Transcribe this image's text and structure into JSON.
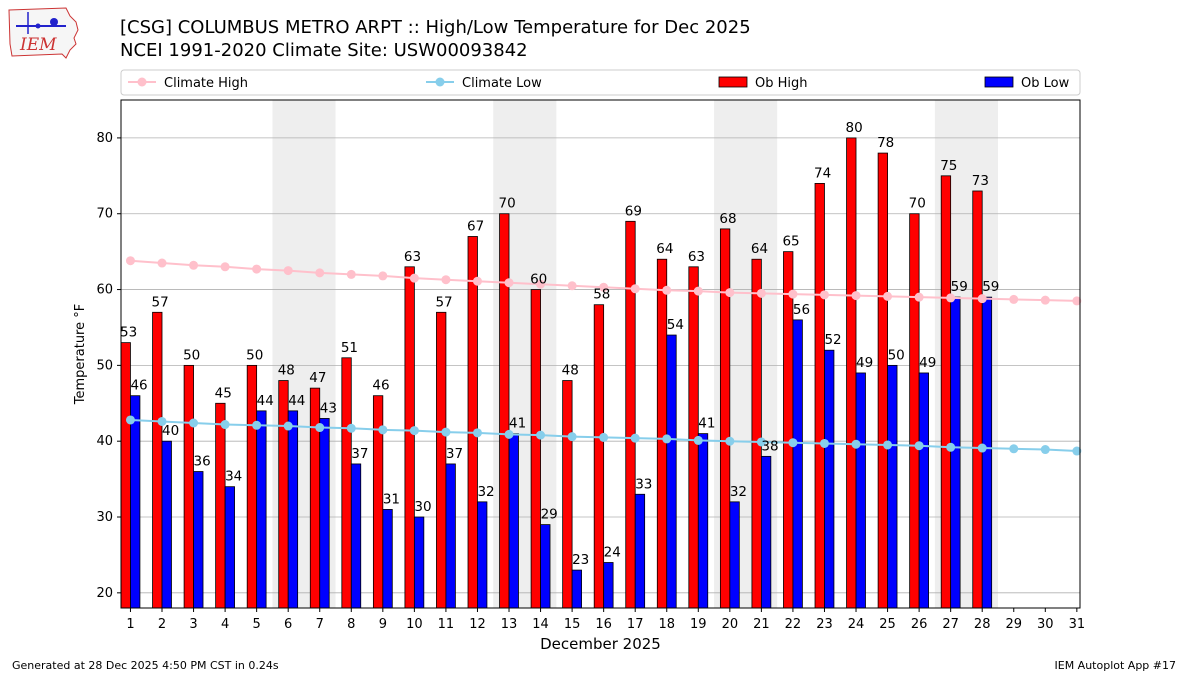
{
  "page": {
    "title_line1": "[CSG] COLUMBUS METRO ARPT :: High/Low Temperature for Dec 2025",
    "title_line2": "NCEI 1991-2020 Climate Site: USW00093842",
    "footer_left": "Generated at 28 Dec 2025 4:50 PM CST in 0.24s",
    "footer_right": "IEM Autoplot App #17",
    "logo_text": "IEM"
  },
  "chart_data": {
    "type": "bar",
    "title": "[CSG] COLUMBUS METRO ARPT :: High/Low Temperature for Dec 2025",
    "subtitle": "NCEI 1991-2020 Climate Site: USW00093842",
    "xlabel": "December 2025",
    "ylabel": "Temperature °F",
    "ylim": [
      18,
      85
    ],
    "yticks": [
      20,
      30,
      40,
      50,
      60,
      70,
      80
    ],
    "grid": "horizontal",
    "legend_position": "top",
    "weekend_shading_days": [
      [
        6,
        7
      ],
      [
        13,
        14
      ],
      [
        20,
        21
      ],
      [
        27,
        28
      ]
    ],
    "categories": [
      "1",
      "2",
      "3",
      "4",
      "5",
      "6",
      "7",
      "8",
      "9",
      "10",
      "11",
      "12",
      "13",
      "14",
      "15",
      "16",
      "17",
      "18",
      "19",
      "20",
      "21",
      "22",
      "23",
      "24",
      "25",
      "26",
      "27",
      "28",
      "29",
      "30",
      "31"
    ],
    "series": [
      {
        "name": "Climate High",
        "kind": "line",
        "color": "#ffc0cb",
        "values": [
          63.8,
          63.5,
          63.2,
          63.0,
          62.7,
          62.5,
          62.2,
          62.0,
          61.8,
          61.5,
          61.3,
          61.1,
          60.9,
          60.7,
          60.5,
          60.3,
          60.1,
          59.9,
          59.8,
          59.6,
          59.5,
          59.4,
          59.3,
          59.2,
          59.1,
          59.0,
          58.9,
          58.8,
          58.7,
          58.6,
          58.5
        ]
      },
      {
        "name": "Climate Low",
        "kind": "line",
        "color": "#87ceeb",
        "values": [
          42.8,
          42.6,
          42.4,
          42.2,
          42.1,
          42.0,
          41.8,
          41.7,
          41.5,
          41.4,
          41.2,
          41.1,
          40.9,
          40.8,
          40.6,
          40.5,
          40.4,
          40.3,
          40.1,
          40.0,
          39.9,
          39.8,
          39.7,
          39.6,
          39.5,
          39.4,
          39.2,
          39.1,
          39.0,
          38.9,
          38.7
        ]
      },
      {
        "name": "Ob High",
        "kind": "bar",
        "color": "#ff0000",
        "values": [
          53,
          57,
          50,
          45,
          50,
          48,
          47,
          51,
          46,
          63,
          57,
          67,
          70,
          60,
          48,
          58,
          69,
          64,
          63,
          68,
          64,
          65,
          74,
          80,
          78,
          70,
          75,
          73,
          null,
          null,
          null
        ]
      },
      {
        "name": "Ob Low",
        "kind": "bar",
        "color": "#0000ff",
        "values": [
          46,
          40,
          36,
          34,
          44,
          44,
          43,
          37,
          31,
          30,
          37,
          32,
          41,
          29,
          23,
          24,
          33,
          54,
          41,
          32,
          38,
          56,
          52,
          49,
          50,
          49,
          59,
          59,
          null,
          null,
          null
        ]
      }
    ]
  }
}
